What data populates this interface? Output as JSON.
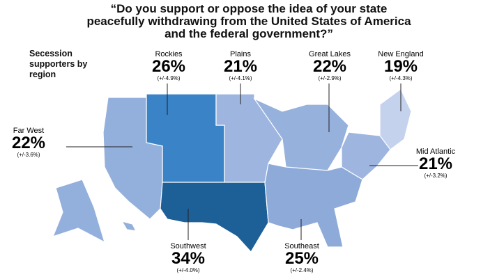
{
  "title": "“Do you support or oppose the idea of your state peacefully withdrawing from the United States of America and the federal government?”",
  "legend_label": "Secession supporters by region",
  "regions": [
    {
      "name": "Rockies",
      "value": 26,
      "value_label": "26%",
      "margin": "(+/-4.9%)",
      "color": "#3983c6"
    },
    {
      "name": "Plains",
      "value": 21,
      "value_label": "21%",
      "margin": "(+/-4.1%)",
      "color": "#9db5df"
    },
    {
      "name": "Great Lakes",
      "value": 22,
      "value_label": "22%",
      "margin": "(+/-2.9%)",
      "color": "#97b1dd"
    },
    {
      "name": "New England",
      "value": 19,
      "value_label": "19%",
      "margin": "(+/-4.3%)",
      "color": "#c5d2ee"
    },
    {
      "name": "Far West",
      "value": 22,
      "value_label": "22%",
      "margin": "(+/-3.6%)",
      "color": "#93afdc"
    },
    {
      "name": "Mid Atlantic",
      "value": 21,
      "value_label": "21%",
      "margin": "(+/-3.2%)",
      "color": "#9db5df"
    },
    {
      "name": "Southwest",
      "value": 34,
      "value_label": "34%",
      "margin": "(+/-4.0%)",
      "color": "#1d5f97"
    },
    {
      "name": "Southeast",
      "value": 25,
      "value_label": "25%",
      "margin": "(+/-2.4%)",
      "color": "#8eaad9"
    }
  ]
}
